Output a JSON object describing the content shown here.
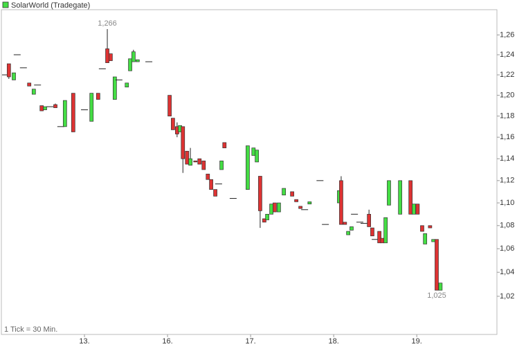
{
  "chart_data": {
    "type": "candlestick",
    "series": [
      {
        "name": "SolarWorld (Tradegate)",
        "up_color": "#44dd44",
        "down_color": "#dd3333"
      }
    ],
    "footnote": "1 Tick = 30 Min.",
    "log_scale": true,
    "grid": false,
    "xlim": [
      0,
      119.3
    ],
    "xticks": [
      {
        "value": 20,
        "label": "13."
      },
      {
        "value": 40,
        "label": "16."
      },
      {
        "value": 60,
        "label": "17."
      },
      {
        "value": 80,
        "label": "18."
      },
      {
        "value": 100,
        "label": "19."
      }
    ],
    "ylim": [
      0.989,
      1.286
    ],
    "yticks": [
      {
        "value": 1.02,
        "label": "1,02"
      },
      {
        "value": 1.04,
        "label": "1,04"
      },
      {
        "value": 1.06,
        "label": "1,06"
      },
      {
        "value": 1.08,
        "label": "1,08"
      },
      {
        "value": 1.1,
        "label": "1,10"
      },
      {
        "value": 1.12,
        "label": "1,12"
      },
      {
        "value": 1.14,
        "label": "1,14"
      },
      {
        "value": 1.16,
        "label": "1,16"
      },
      {
        "value": 1.18,
        "label": "1,18"
      },
      {
        "value": 1.2,
        "label": "1,20"
      },
      {
        "value": 1.22,
        "label": "1,22"
      },
      {
        "value": 1.24,
        "label": "1,24"
      },
      {
        "value": 1.26,
        "label": "1,26"
      }
    ],
    "annotations": [
      {
        "label": "1,266",
        "x": 25.5,
        "value": 1.266
      },
      {
        "label": "1,025",
        "x": 104.8,
        "value": 1.025
      }
    ],
    "x": [
      1.0,
      1.8,
      3.0,
      3.8,
      5.3,
      6.7,
      7.8,
      8.7,
      9.7,
      10.5,
      11.7,
      13.0,
      14.3,
      15.3,
      17.3,
      20.0,
      21.7,
      23.3,
      24.3,
      25.5,
      26.3,
      27.3,
      28.3,
      30.2,
      31.0,
      31.8,
      32.8,
      35.5,
      40.5,
      41.3,
      42.3,
      43.0,
      43.7,
      44.7,
      45.5,
      46.7,
      47.7,
      48.7,
      49.7,
      50.5,
      51.5,
      52.3,
      53.0,
      53.7,
      55.8,
      59.3,
      60.7,
      61.5,
      62.3,
      63.3,
      64.0,
      65.0,
      65.8,
      66.8,
      68.0,
      70.0,
      71.0,
      72.0,
      73.0,
      74.2,
      76.7,
      78.0,
      81.3,
      81.8,
      82.7,
      83.5,
      84.3,
      85.0,
      86.3,
      87.3,
      88.5,
      89.3,
      90.0,
      91.0,
      91.7,
      92.5,
      93.3,
      96.0,
      98.5,
      99.3,
      100.2,
      101.3,
      102.0,
      103.2,
      104.0,
      104.8,
      105.7
    ],
    "open": [
      1.22,
      1.231,
      1.215,
      1.24,
      1.227,
      1.212,
      1.201,
      1.21,
      1.19,
      1.186,
      1.189,
      1.191,
      1.17,
      1.17,
      1.202,
      1.186,
      1.175,
      1.202,
      1.226,
      1.246,
      1.241,
      1.196,
      1.215,
      1.208,
      1.224,
      1.233,
      1.233,
      1.233,
      1.2,
      1.178,
      1.17,
      1.165,
      1.17,
      1.147,
      1.134,
      1.138,
      1.14,
      1.138,
      1.126,
      1.121,
      1.112,
      1.117,
      1.13,
      1.155,
      1.104,
      1.112,
      1.143,
      1.137,
      1.124,
      1.086,
      1.085,
      1.09,
      1.1,
      1.092,
      1.107,
      1.11,
      1.103,
      1.097,
      1.094,
      1.099,
      1.12,
      1.081,
      1.1,
      1.12,
      1.083,
      1.072,
      1.076,
      1.09,
      1.083,
      1.082,
      1.09,
      1.078,
      1.068,
      1.075,
      1.069,
      1.065,
      1.098,
      1.09,
      1.12,
      1.09,
      1.099,
      1.08,
      1.064,
      1.08,
      1.066,
      1.068,
      1.025
    ],
    "high": [
      1.22,
      1.231,
      1.222,
      1.24,
      1.227,
      1.212,
      1.206,
      1.21,
      1.19,
      1.189,
      1.189,
      1.192,
      1.17,
      1.195,
      1.202,
      1.186,
      1.202,
      1.202,
      1.226,
      1.266,
      1.241,
      1.218,
      1.215,
      1.212,
      1.236,
      1.245,
      1.235,
      1.233,
      1.2,
      1.178,
      1.174,
      1.171,
      1.17,
      1.147,
      1.15,
      1.138,
      1.14,
      1.138,
      1.126,
      1.121,
      1.112,
      1.117,
      1.138,
      1.155,
      1.104,
      1.152,
      1.15,
      1.148,
      1.124,
      1.086,
      1.09,
      1.099,
      1.1,
      1.1,
      1.113,
      1.11,
      1.103,
      1.097,
      1.094,
      1.101,
      1.12,
      1.081,
      1.111,
      1.124,
      1.083,
      1.075,
      1.079,
      1.09,
      1.083,
      1.082,
      1.094,
      1.078,
      1.068,
      1.075,
      1.069,
      1.087,
      1.12,
      1.12,
      1.12,
      1.099,
      1.099,
      1.08,
      1.073,
      1.08,
      1.068,
      1.068,
      1.031
    ],
    "low": [
      1.22,
      1.216,
      1.215,
      1.24,
      1.227,
      1.209,
      1.201,
      1.21,
      1.185,
      1.186,
      1.189,
      1.188,
      1.17,
      1.17,
      1.165,
      1.186,
      1.175,
      1.196,
      1.226,
      1.232,
      1.234,
      1.196,
      1.215,
      1.208,
      1.224,
      1.233,
      1.233,
      1.233,
      1.18,
      1.167,
      1.16,
      1.165,
      1.127,
      1.135,
      1.134,
      1.137,
      1.135,
      1.13,
      1.121,
      1.112,
      1.106,
      1.117,
      1.13,
      1.15,
      1.104,
      1.112,
      1.143,
      1.137,
      1.078,
      1.083,
      1.085,
      1.09,
      1.092,
      1.092,
      1.107,
      1.106,
      1.101,
      1.095,
      1.094,
      1.099,
      1.12,
      1.081,
      1.1,
      1.081,
      1.081,
      1.072,
      1.076,
      1.09,
      1.083,
      1.082,
      1.079,
      1.071,
      1.068,
      1.065,
      1.065,
      1.065,
      1.098,
      1.09,
      1.09,
      1.09,
      1.09,
      1.075,
      1.064,
      1.078,
      1.066,
      1.025,
      1.025
    ],
    "close": [
      1.22,
      1.218,
      1.222,
      1.24,
      1.227,
      1.209,
      1.206,
      1.21,
      1.185,
      1.189,
      1.189,
      1.188,
      1.17,
      1.195,
      1.165,
      1.186,
      1.202,
      1.196,
      1.226,
      1.232,
      1.234,
      1.218,
      1.215,
      1.212,
      1.236,
      1.243,
      1.235,
      1.233,
      1.18,
      1.167,
      1.163,
      1.171,
      1.14,
      1.135,
      1.14,
      1.137,
      1.135,
      1.13,
      1.121,
      1.112,
      1.106,
      1.117,
      1.138,
      1.15,
      1.104,
      1.152,
      1.15,
      1.148,
      1.093,
      1.083,
      1.09,
      1.099,
      1.092,
      1.1,
      1.113,
      1.106,
      1.101,
      1.095,
      1.094,
      1.101,
      1.12,
      1.081,
      1.111,
      1.081,
      1.081,
      1.075,
      1.079,
      1.09,
      1.083,
      1.082,
      1.079,
      1.071,
      1.068,
      1.065,
      1.065,
      1.087,
      1.12,
      1.12,
      1.09,
      1.099,
      1.09,
      1.075,
      1.073,
      1.078,
      1.068,
      1.025,
      1.031
    ]
  }
}
